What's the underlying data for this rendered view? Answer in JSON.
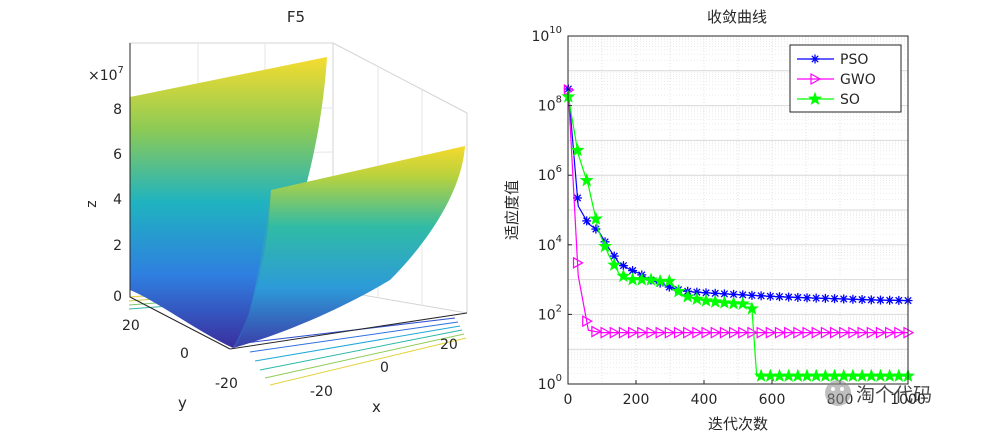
{
  "chart_data": [
    {
      "type": "surface3d",
      "title": "F5",
      "xlabel": "x",
      "ylabel": "y",
      "zlabel": "z",
      "z_multiplier": "×10",
      "z_exponent": "7",
      "z_ticks": [
        "0",
        "2",
        "4",
        "6",
        "8"
      ],
      "x_ticks": [
        "-20",
        "0",
        "20"
      ],
      "y_ticks": [
        "20",
        "0",
        "-20"
      ],
      "xlim": [
        -30,
        30
      ],
      "ylim": [
        -30,
        30
      ],
      "zlim": [
        0,
        90000000
      ]
    },
    {
      "type": "line",
      "title": "收敛曲线",
      "xlabel": "迭代次数",
      "ylabel": "适应度值",
      "yscale": "log",
      "xlim": [
        0,
        1000
      ],
      "ylim": [
        1,
        10000000000
      ],
      "x_ticks": [
        "0",
        "200",
        "400",
        "600",
        "800",
        "1000"
      ],
      "y_ticks": [
        {
          "value": 1,
          "base": "10",
          "exp": "0"
        },
        {
          "value": 100,
          "base": "10",
          "exp": "2"
        },
        {
          "value": 10000,
          "base": "10",
          "exp": "4"
        },
        {
          "value": 1000000,
          "base": "10",
          "exp": "6"
        },
        {
          "value": 100000000,
          "base": "10",
          "exp": "8"
        },
        {
          "value": 10000000000,
          "base": "10",
          "exp": "10"
        }
      ],
      "grid": true,
      "legend_position": "top-right",
      "series": [
        {
          "name": "PSO",
          "color": "#0000ff",
          "marker": "asterisk",
          "points": [
            [
              1,
              300000000
            ],
            [
              30,
              130000
            ],
            [
              60,
              40000
            ],
            [
              90,
              25000
            ],
            [
              120,
              8000
            ],
            [
              150,
              3000
            ],
            [
              180,
              2000
            ],
            [
              210,
              1500
            ],
            [
              240,
              1000
            ],
            [
              270,
              800
            ],
            [
              300,
              600
            ],
            [
              330,
              500
            ],
            [
              360,
              450
            ],
            [
              400,
              420
            ],
            [
              500,
              370
            ],
            [
              600,
              330
            ],
            [
              700,
              300
            ],
            [
              800,
              280
            ],
            [
              900,
              260
            ],
            [
              1000,
              250
            ]
          ]
        },
        {
          "name": "GWO",
          "color": "#ff00ff",
          "marker": "triangle-right",
          "points": [
            [
              1,
              280000000
            ],
            [
              30,
              1300
            ],
            [
              60,
              35
            ],
            [
              100,
              30
            ],
            [
              200,
              30
            ],
            [
              300,
              30
            ],
            [
              400,
              30
            ],
            [
              500,
              30
            ],
            [
              600,
              30
            ],
            [
              700,
              30
            ],
            [
              800,
              30
            ],
            [
              900,
              30
            ],
            [
              1000,
              30
            ]
          ]
        },
        {
          "name": "SO",
          "color": "#00ff00",
          "marker": "pentagram",
          "points": [
            [
              1,
              180000000
            ],
            [
              30,
              4000000
            ],
            [
              60,
              500000
            ],
            [
              90,
              25000
            ],
            [
              120,
              5000
            ],
            [
              150,
              1500
            ],
            [
              180,
              1000
            ],
            [
              210,
              1000
            ],
            [
              240,
              1000
            ],
            [
              270,
              900
            ],
            [
              300,
              900
            ],
            [
              330,
              400
            ],
            [
              360,
              300
            ],
            [
              400,
              250
            ],
            [
              450,
              220
            ],
            [
              500,
              200
            ],
            [
              540,
              200
            ],
            [
              555,
              1.7
            ],
            [
              600,
              1.7
            ],
            [
              700,
              1.7
            ],
            [
              800,
              1.7
            ],
            [
              900,
              1.7
            ],
            [
              1000,
              1.7
            ]
          ]
        }
      ]
    }
  ],
  "watermark": {
    "text": "淘个代码"
  }
}
